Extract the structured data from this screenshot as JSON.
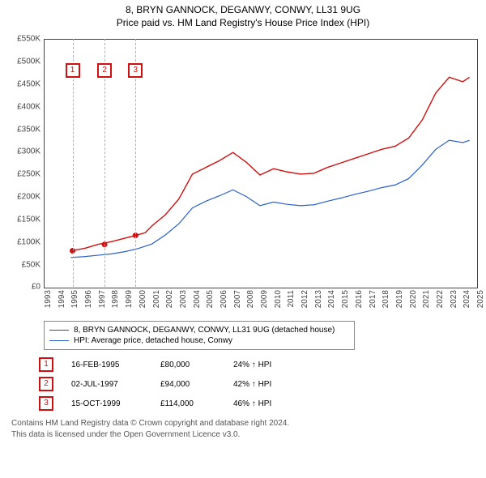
{
  "title": "8, BRYN GANNOCK, DEGANWY, CONWY, LL31 9UG",
  "subtitle": "Price paid vs. HM Land Registry's House Price Index (HPI)",
  "chart": {
    "type": "line",
    "background_color": "#ffffff",
    "grid_color": "#b0b0b0",
    "axis_color": "#444444",
    "y": {
      "min": 0,
      "max": 550000,
      "ticks": [
        0,
        50000,
        100000,
        150000,
        200000,
        250000,
        300000,
        350000,
        400000,
        450000,
        500000,
        550000
      ],
      "labels": [
        "£0",
        "£50K",
        "£100K",
        "£150K",
        "£200K",
        "£250K",
        "£300K",
        "£350K",
        "£400K",
        "£450K",
        "£500K",
        "£550K"
      ],
      "label_fontsize": 10
    },
    "x": {
      "min": 1993,
      "max": 2025,
      "ticks": [
        1993,
        1994,
        1995,
        1996,
        1997,
        1998,
        1999,
        2000,
        2001,
        2002,
        2003,
        2004,
        2005,
        2006,
        2007,
        2008,
        2009,
        2010,
        2011,
        2012,
        2013,
        2014,
        2015,
        2016,
        2017,
        2018,
        2019,
        2020,
        2021,
        2022,
        2023,
        2024,
        2025
      ],
      "label_fontsize": 10
    },
    "series": [
      {
        "name": "8, BRYN GANNOCK, DEGANWY, CONWY, LL31 9UG (detached house)",
        "color": "#d01010",
        "line_width": 1.4,
        "points": [
          [
            1995,
            80000
          ],
          [
            1996,
            85000
          ],
          [
            1997,
            94000
          ],
          [
            1998,
            100000
          ],
          [
            1999.8,
            114000
          ],
          [
            2000.5,
            120000
          ],
          [
            2001,
            135000
          ],
          [
            2002,
            160000
          ],
          [
            2003,
            195000
          ],
          [
            2004,
            250000
          ],
          [
            2005,
            265000
          ],
          [
            2006,
            280000
          ],
          [
            2007,
            298000
          ],
          [
            2008,
            276000
          ],
          [
            2009,
            248000
          ],
          [
            2010,
            262000
          ],
          [
            2011,
            255000
          ],
          [
            2012,
            250000
          ],
          [
            2013,
            252000
          ],
          [
            2014,
            265000
          ],
          [
            2015,
            275000
          ],
          [
            2016,
            285000
          ],
          [
            2017,
            295000
          ],
          [
            2018,
            305000
          ],
          [
            2019,
            312000
          ],
          [
            2020,
            330000
          ],
          [
            2021,
            370000
          ],
          [
            2022,
            430000
          ],
          [
            2023,
            465000
          ],
          [
            2024,
            455000
          ],
          [
            2024.5,
            465000
          ]
        ]
      },
      {
        "name": "HPI: Average price, detached house, Conwy",
        "color": "#2a5fd0",
        "line_width": 1.2,
        "points": [
          [
            1995,
            65000
          ],
          [
            1996,
            67000
          ],
          [
            1997,
            70000
          ],
          [
            1998,
            73000
          ],
          [
            1999,
            78000
          ],
          [
            2000,
            85000
          ],
          [
            2001,
            95000
          ],
          [
            2002,
            115000
          ],
          [
            2003,
            140000
          ],
          [
            2004,
            175000
          ],
          [
            2005,
            190000
          ],
          [
            2006,
            202000
          ],
          [
            2007,
            215000
          ],
          [
            2008,
            200000
          ],
          [
            2009,
            180000
          ],
          [
            2010,
            188000
          ],
          [
            2011,
            183000
          ],
          [
            2012,
            180000
          ],
          [
            2013,
            182000
          ],
          [
            2014,
            190000
          ],
          [
            2015,
            197000
          ],
          [
            2016,
            205000
          ],
          [
            2017,
            212000
          ],
          [
            2018,
            220000
          ],
          [
            2019,
            226000
          ],
          [
            2020,
            240000
          ],
          [
            2021,
            270000
          ],
          [
            2022,
            305000
          ],
          [
            2023,
            325000
          ],
          [
            2024,
            320000
          ],
          [
            2024.5,
            325000
          ]
        ]
      }
    ],
    "markers": [
      {
        "id": "1",
        "year": 1995.13,
        "value": 80000,
        "color": "#d01010"
      },
      {
        "id": "2",
        "year": 1997.5,
        "value": 94000,
        "color": "#d01010"
      },
      {
        "id": "3",
        "year": 1999.79,
        "value": 114000,
        "color": "#d01010"
      }
    ],
    "marker_label_top_offset": 30,
    "marker_box_fontsize": 10
  },
  "legend": {
    "items": [
      {
        "label": "8, BRYN GANNOCK, DEGANWY, CONWY, LL31 9UG (detached house)",
        "color": "#d01010"
      },
      {
        "label": "HPI: Average price, detached house, Conwy",
        "color": "#2a5fd0"
      }
    ],
    "fontsize": 10
  },
  "events": [
    {
      "id": "1",
      "date": "16-FEB-1995",
      "price": "£80,000",
      "pct": "24% ↑ HPI",
      "color": "#d01010"
    },
    {
      "id": "2",
      "date": "02-JUL-1997",
      "price": "£94,000",
      "pct": "42% ↑ HPI",
      "color": "#d01010"
    },
    {
      "id": "3",
      "date": "15-OCT-1999",
      "price": "£114,000",
      "pct": "46% ↑ HPI",
      "color": "#d01010"
    }
  ],
  "footer_line1": "Contains HM Land Registry data © Crown copyright and database right 2024.",
  "footer_line2": "This data is licensed under the Open Government Licence v3.0."
}
